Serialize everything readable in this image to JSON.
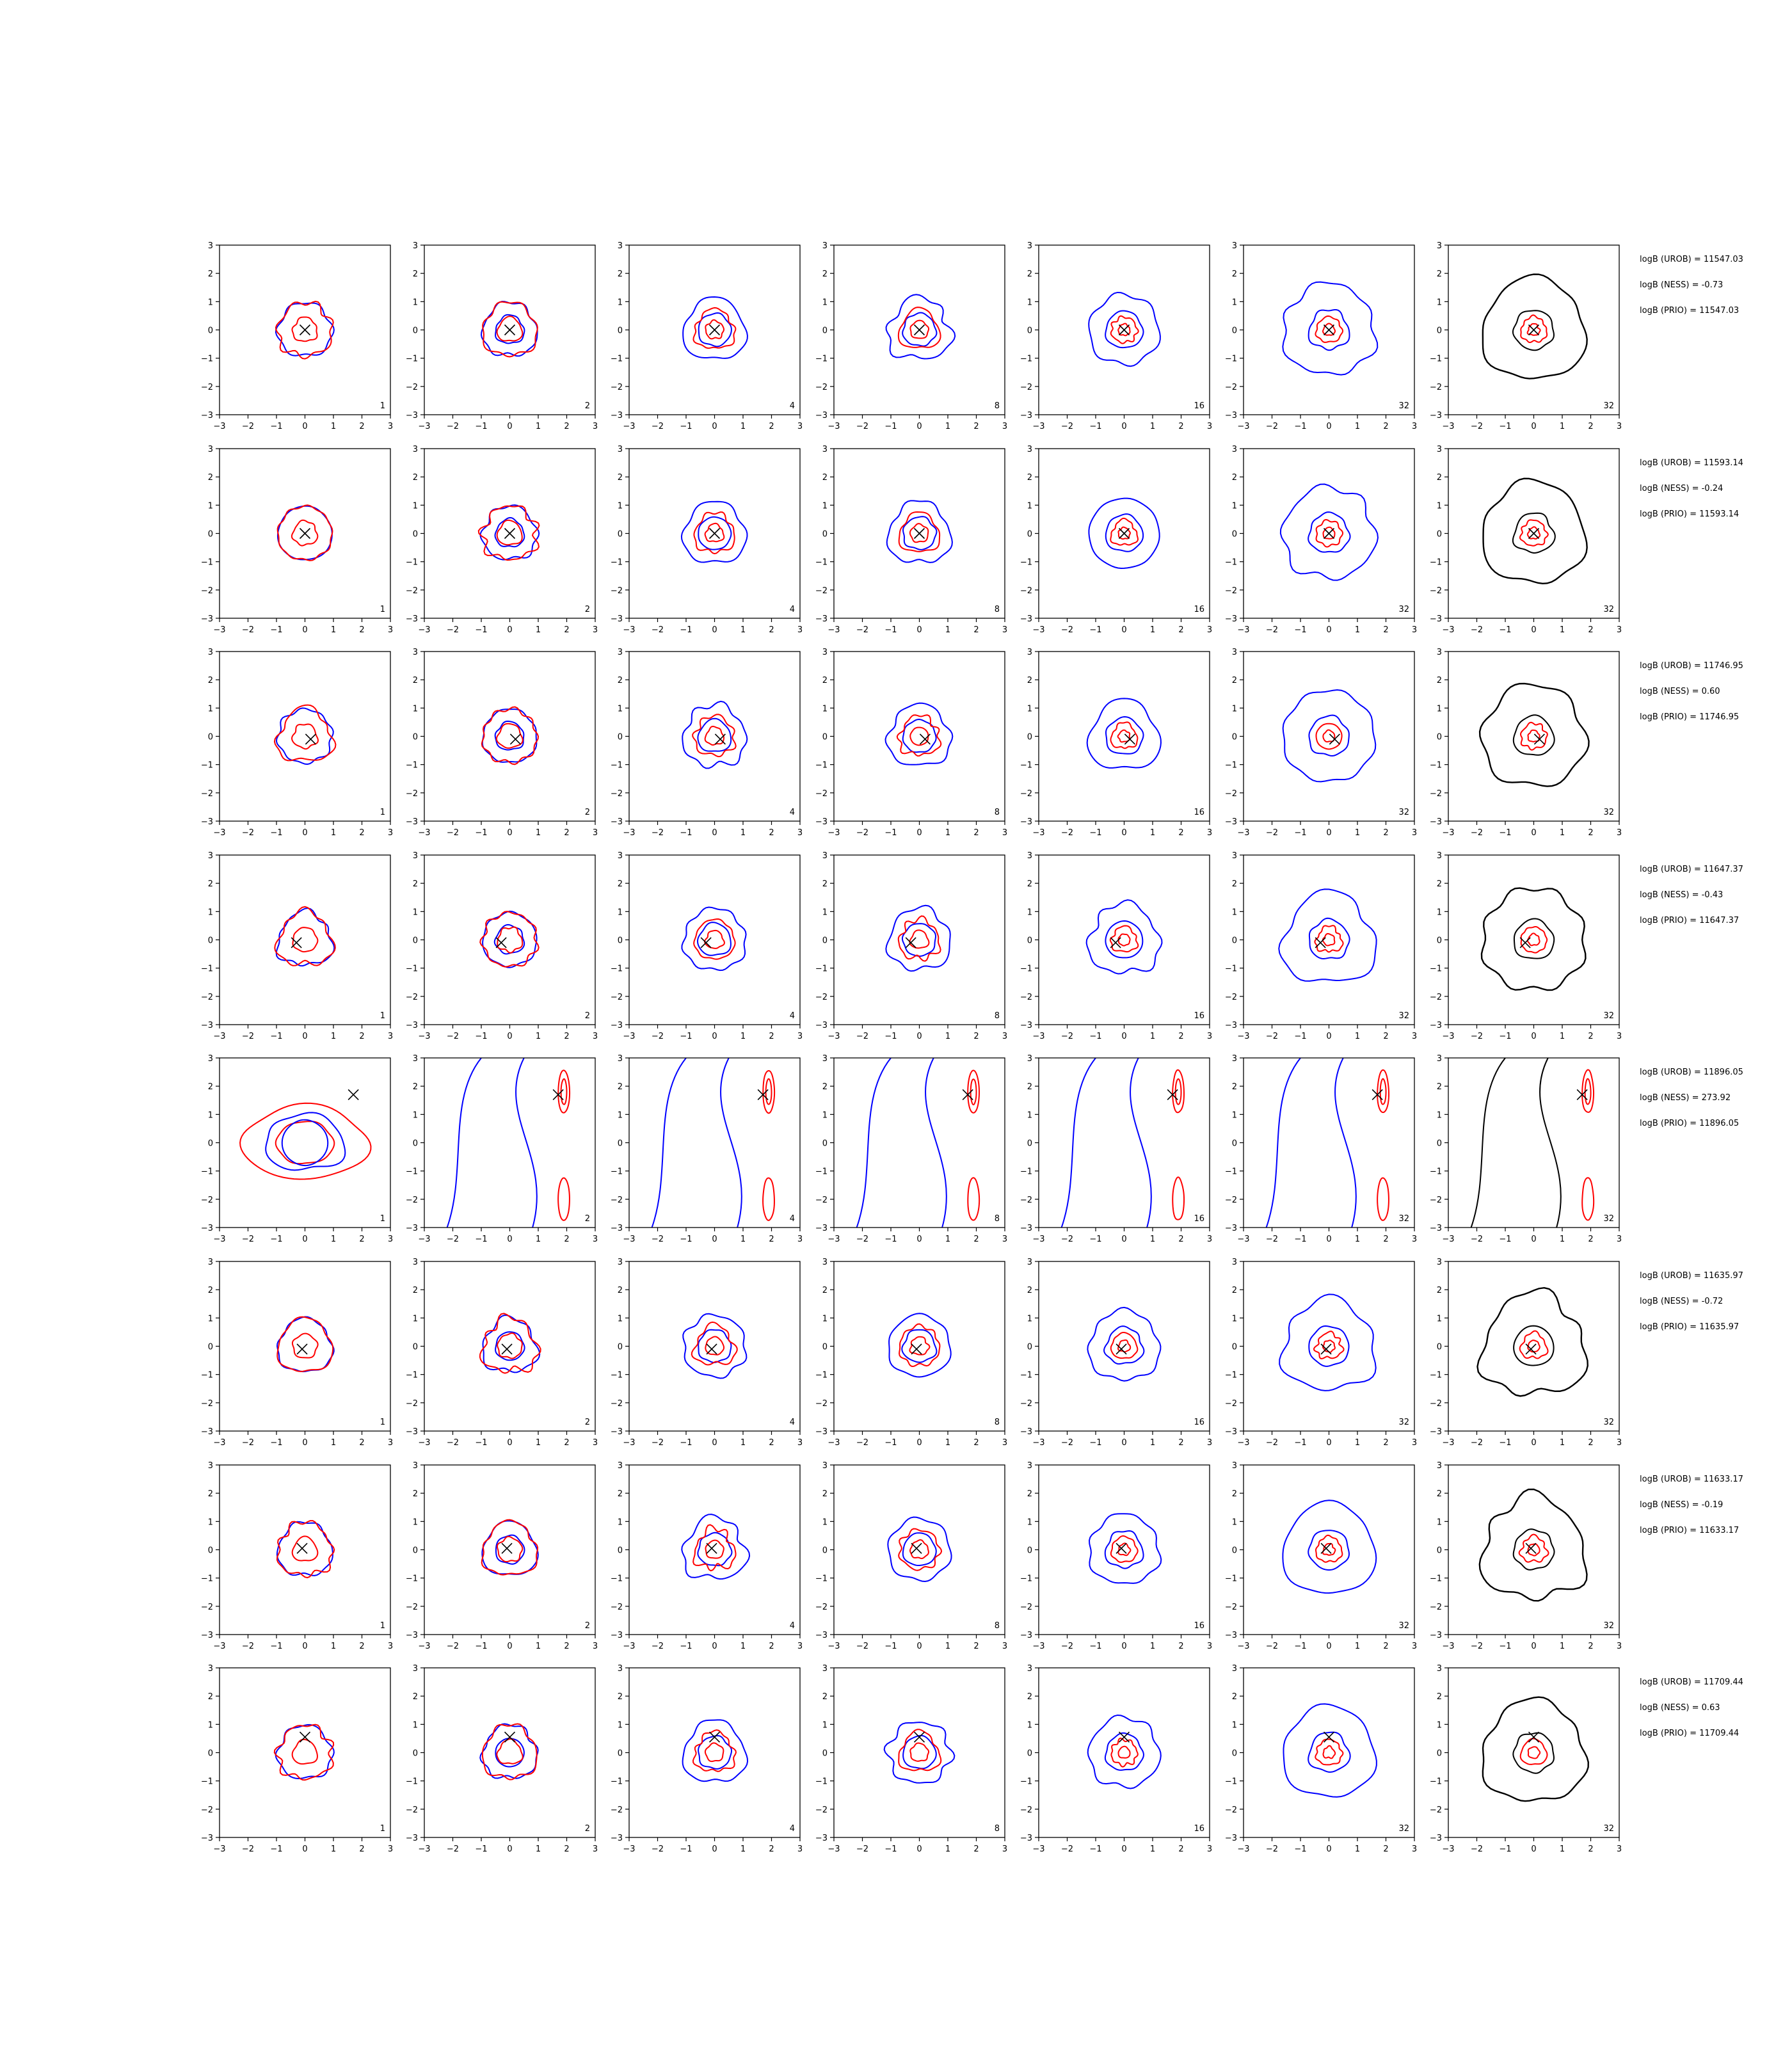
{
  "chart_data": {
    "type": "contour-grid",
    "rows": 8,
    "cols": 7,
    "xlim": [
      -3,
      3
    ],
    "ylim": [
      -3,
      3
    ],
    "xticks": [
      -3,
      -2,
      -1,
      0,
      1,
      2,
      3
    ],
    "yticks": [
      -3,
      -2,
      -1,
      0,
      1,
      2,
      3
    ],
    "column_labels": [
      "1",
      "2",
      "4",
      "8",
      "16",
      "32",
      "32"
    ],
    "colors": {
      "blue": "#0000ff",
      "red": "#ff0000",
      "black": "#000000"
    },
    "panels": [
      {
        "row": 0,
        "marker": [
          0,
          0
        ],
        "kind": "centered"
      },
      {
        "row": 1,
        "marker": [
          0,
          0
        ],
        "kind": "centered"
      },
      {
        "row": 2,
        "marker": [
          0.2,
          -0.1
        ],
        "kind": "centered"
      },
      {
        "row": 3,
        "marker": [
          -0.3,
          -0.1
        ],
        "kind": "centered"
      },
      {
        "row": 4,
        "marker": [
          1.7,
          1.7
        ],
        "kind": "bimodal"
      },
      {
        "row": 5,
        "marker": [
          -0.1,
          -0.1
        ],
        "kind": "centered"
      },
      {
        "row": 6,
        "marker": [
          -0.1,
          0.05
        ],
        "kind": "centered"
      },
      {
        "row": 7,
        "marker": [
          0,
          0.55
        ],
        "kind": "centered"
      }
    ],
    "annotations": [
      [
        "logB (UROB) = 11547.03",
        "logB (NESS) = -0.73",
        "logB (PRIO) = 11547.03"
      ],
      [
        "logB (UROB) = 11593.14",
        "logB (NESS) = -0.24",
        "logB (PRIO) = 11593.14"
      ],
      [
        "logB (UROB) = 11746.95",
        "logB (NESS) = 0.60",
        "logB (PRIO) = 11746.95"
      ],
      [
        "logB (UROB) = 11647.37",
        "logB (NESS) = -0.43",
        "logB (PRIO) = 11647.37"
      ],
      [
        "logB (UROB) = 11896.05",
        "logB (NESS) = 273.92",
        "logB (PRIO) = 11896.05"
      ],
      [
        "logB (UROB) = 11635.97",
        "logB (NESS) = -0.72",
        "logB (PRIO) = 11635.97"
      ],
      [
        "logB (UROB) = 11633.17",
        "logB (NESS) = -0.19",
        "logB (PRIO) = 11633.17"
      ],
      [
        "logB (UROB) = 11709.44",
        "logB (NESS) = 0.63",
        "logB (PRIO) = 11709.44"
      ]
    ]
  }
}
